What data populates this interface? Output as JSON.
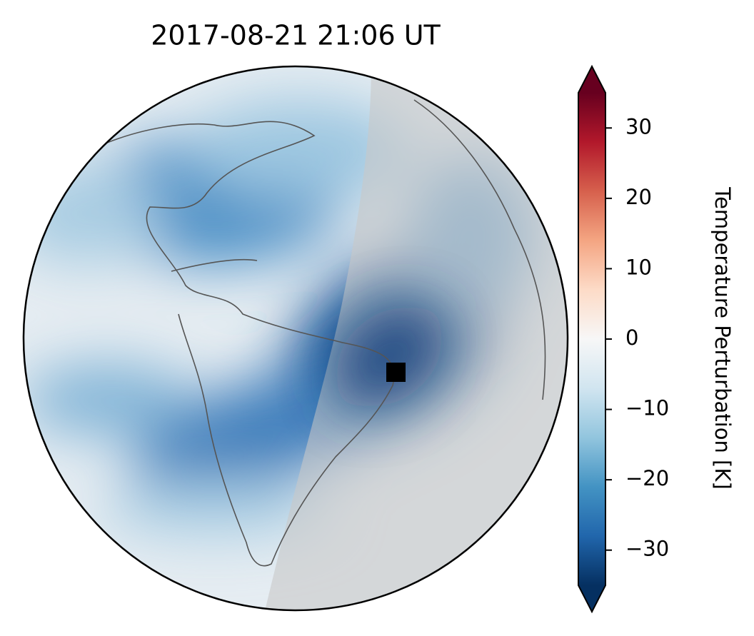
{
  "title": "2017-08-21  21:06 UT",
  "colorbar": {
    "label": "Temperature Perturbation [K]",
    "lim": [
      -35,
      35
    ],
    "ticks": [
      30,
      20,
      10,
      0,
      {
        "value": -10,
        "label": "−10"
      },
      {
        "value": -20,
        "label": "−20"
      },
      {
        "value": -30,
        "label": "−30"
      }
    ],
    "colors": [
      "#67001f",
      "#b2182b",
      "#d6604d",
      "#f4a582",
      "#fddbc7",
      "#f7f7f7",
      "#d1e5f0",
      "#92c5de",
      "#4393c3",
      "#2166ac",
      "#053061"
    ]
  }
}
